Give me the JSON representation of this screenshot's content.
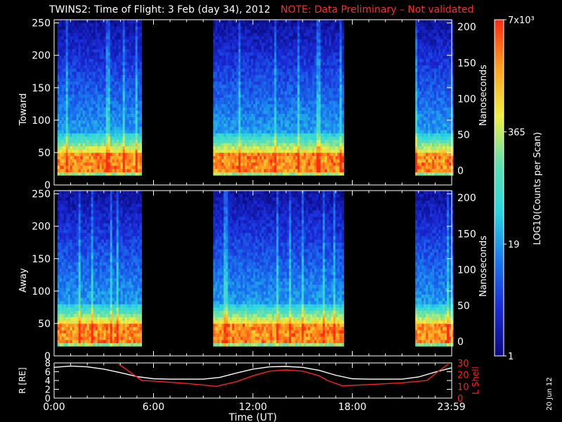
{
  "title": "TWINS2: Time of Flight:  3 Feb (day  34), 2012",
  "note": "NOTE: Data Preliminary – Not validated",
  "stamp": "20 Jun 12",
  "colorbar": {
    "label": "LOG10(Counts per Scan)",
    "ticks": [
      {
        "label": "7x10³",
        "value": 7000
      },
      {
        "label": "365",
        "value": 365
      },
      {
        "label": "19",
        "value": 19
      },
      {
        "label": "1",
        "value": 1
      }
    ],
    "range": [
      1,
      7000
    ],
    "scale": "log",
    "colormap": [
      "#0a0a80",
      "#1a2bd8",
      "#1a7af0",
      "#2ad6e0",
      "#5fe0b0",
      "#f0f040",
      "#ffa020",
      "#ff2a10"
    ]
  },
  "chart_data": [
    {
      "type": "heatmap",
      "panel": "toward",
      "ylabel": "Toward",
      "ylabel_right": "Nanoseconds",
      "ylim_left": [
        0,
        255
      ],
      "yticks_left": [
        "0",
        "50",
        "100",
        "150",
        "200",
        "250"
      ],
      "ylim_right": [
        -20,
        210
      ],
      "yticks_right": [
        "0",
        "50",
        "100",
        "150",
        "200"
      ],
      "xlim_hours": [
        0,
        24
      ],
      "data_intervals_hours": [
        [
          0.2,
          5.2
        ],
        [
          9.6,
          17.4
        ],
        [
          21.8,
          24.0
        ]
      ],
      "peak_band_channels": [
        20,
        45
      ],
      "low_count_above_channel": 80
    },
    {
      "type": "heatmap",
      "panel": "away",
      "ylabel": "Away",
      "ylabel_right": "Nanoseconds",
      "ylim_left": [
        0,
        255
      ],
      "yticks_left": [
        "0",
        "50",
        "100",
        "150",
        "200",
        "250"
      ],
      "ylim_right": [
        -20,
        210
      ],
      "yticks_right": [
        "0",
        "50",
        "100",
        "150",
        "200"
      ],
      "xlim_hours": [
        0,
        24
      ],
      "data_intervals_hours": [
        [
          0.2,
          5.2
        ],
        [
          9.6,
          17.4
        ],
        [
          21.8,
          24.0
        ]
      ],
      "peak_band_channels": [
        20,
        45
      ],
      "low_count_above_channel": 80
    },
    {
      "type": "line",
      "panel": "orbit",
      "ylabel": "R [RE]",
      "ylabel_right": "L Shell",
      "xlabel": "Time (UT)",
      "xticks": [
        "0:00",
        "6:00",
        "12:00",
        "18:00",
        "23:59"
      ],
      "xlim_hours": [
        0,
        24
      ],
      "ylim_left": [
        0,
        8
      ],
      "yticks_left": [
        "0",
        "2",
        "4",
        "6",
        "8"
      ],
      "ylim_right": [
        0,
        30
      ],
      "yticks_right": [
        "0",
        "10",
        "20",
        "30"
      ],
      "series": [
        {
          "name": "R",
          "axis": "left",
          "color": "#ffffff",
          "x": [
            0,
            1,
            2,
            3,
            4,
            5,
            6,
            7,
            8,
            9,
            10,
            11,
            12,
            13,
            14,
            15,
            16,
            17,
            18,
            19,
            20,
            21,
            22,
            23,
            24
          ],
          "y": [
            7.0,
            7.3,
            7.1,
            6.6,
            5.8,
            4.9,
            4.4,
            4.3,
            4.3,
            4.3,
            4.7,
            5.7,
            6.6,
            7.1,
            7.2,
            7.0,
            6.3,
            5.2,
            4.4,
            4.3,
            4.3,
            4.3,
            4.8,
            5.9,
            6.9
          ]
        },
        {
          "name": "L Shell",
          "axis": "right",
          "color": "#ff2020",
          "x": [
            3.9,
            4.5,
            5.3,
            6.0,
            8.0,
            9.8,
            11.0,
            12.0,
            13.0,
            14.0,
            15.0,
            16.0,
            16.5,
            17.4,
            19.0,
            21.0,
            22.5,
            23.3,
            23.8
          ],
          "y": [
            29.0,
            23.0,
            15.0,
            14.5,
            12.5,
            10.0,
            14.0,
            19.0,
            23.0,
            24.0,
            23.0,
            19.0,
            15.0,
            10.5,
            11.5,
            13.0,
            15.0,
            24.0,
            29.0
          ]
        }
      ]
    }
  ]
}
